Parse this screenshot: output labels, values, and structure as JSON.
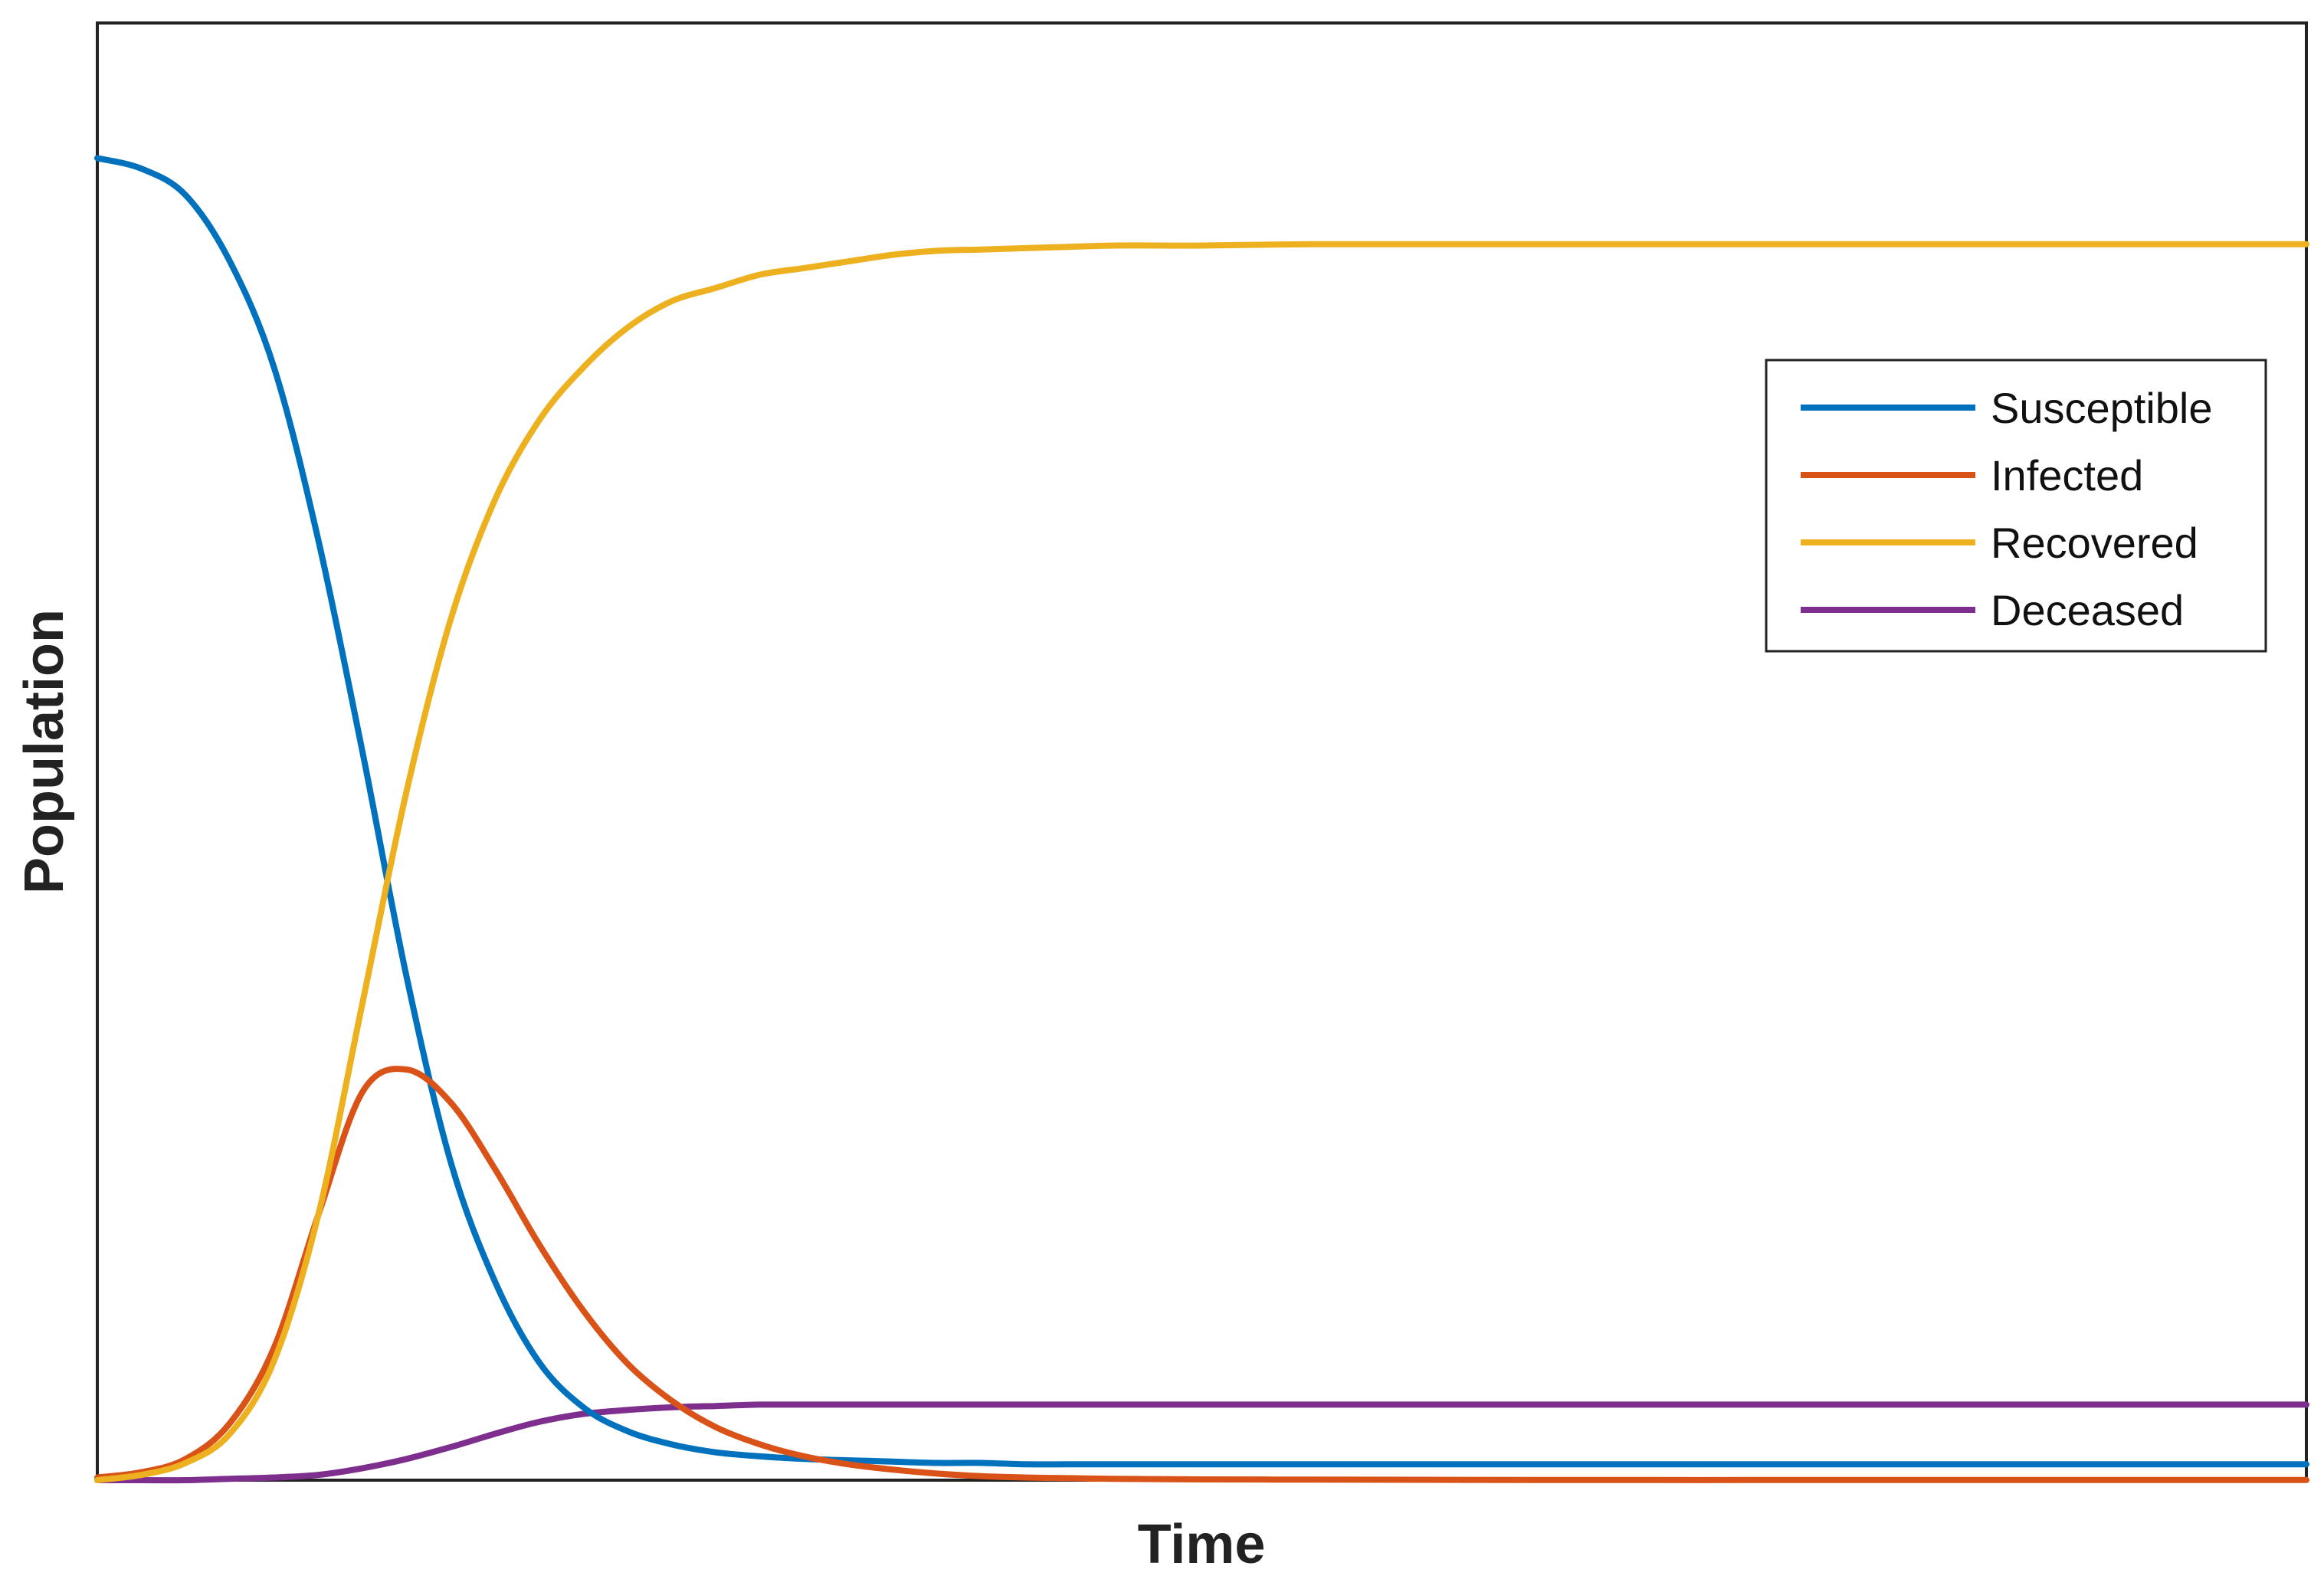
{
  "chart_data": {
    "type": "line",
    "title": "",
    "xlabel": "Time",
    "ylabel": "Population",
    "xlim": [
      0,
      100
    ],
    "ylim": [
      0,
      1.1
    ],
    "grid": false,
    "legend_position": "top-right",
    "x": [
      0,
      2,
      4,
      6,
      8,
      10,
      12,
      14,
      16,
      18,
      20,
      22,
      24,
      26,
      28,
      30,
      32,
      34,
      36,
      38,
      40,
      42,
      44,
      46,
      48,
      50,
      55,
      60,
      65,
      70,
      75,
      80,
      85,
      90,
      95,
      100
    ],
    "series": [
      {
        "name": "Susceptible",
        "color": "#0072BD",
        "values": [
          0.998,
          0.99,
          0.97,
          0.92,
          0.84,
          0.71,
          0.55,
          0.38,
          0.24,
          0.15,
          0.089,
          0.055,
          0.037,
          0.027,
          0.021,
          0.018,
          0.016,
          0.015,
          0.014,
          0.013,
          0.013,
          0.012,
          0.012,
          0.012,
          0.012,
          0.012,
          0.012,
          0.012,
          0.012,
          0.012,
          0.012,
          0.012,
          0.012,
          0.012,
          0.012,
          0.012
        ]
      },
      {
        "name": "Infected",
        "color": "#D95319",
        "values": [
          0.002,
          0.006,
          0.016,
          0.043,
          0.1,
          0.2,
          0.293,
          0.31,
          0.285,
          0.235,
          0.178,
          0.128,
          0.088,
          0.06,
          0.04,
          0.027,
          0.018,
          0.012,
          0.008,
          0.005,
          0.003,
          0.002,
          0.0015,
          0.001,
          0.0008,
          0.0006,
          0.0004,
          0.0003,
          0.0002,
          0.0001,
          0.0001,
          0.0001,
          0.0001,
          0.0001,
          0.0001,
          0.0001
        ]
      },
      {
        "name": "Recovered",
        "color": "#EDB120",
        "values": [
          0.0,
          0.004,
          0.013,
          0.035,
          0.09,
          0.2,
          0.36,
          0.52,
          0.65,
          0.74,
          0.8,
          0.84,
          0.87,
          0.89,
          0.9,
          0.91,
          0.915,
          0.92,
          0.925,
          0.928,
          0.929,
          0.93,
          0.931,
          0.932,
          0.932,
          0.932,
          0.933,
          0.933,
          0.933,
          0.933,
          0.933,
          0.933,
          0.933,
          0.933,
          0.933,
          0.933
        ]
      },
      {
        "name": "Deceased",
        "color": "#7E2F8E",
        "values": [
          0.0,
          0.0,
          0.0,
          0.001,
          0.002,
          0.004,
          0.009,
          0.016,
          0.025,
          0.035,
          0.044,
          0.05,
          0.053,
          0.055,
          0.056,
          0.057,
          0.057,
          0.057,
          0.057,
          0.057,
          0.057,
          0.057,
          0.057,
          0.057,
          0.057,
          0.057,
          0.057,
          0.057,
          0.057,
          0.057,
          0.057,
          0.057,
          0.057,
          0.057,
          0.057,
          0.057
        ]
      }
    ]
  }
}
